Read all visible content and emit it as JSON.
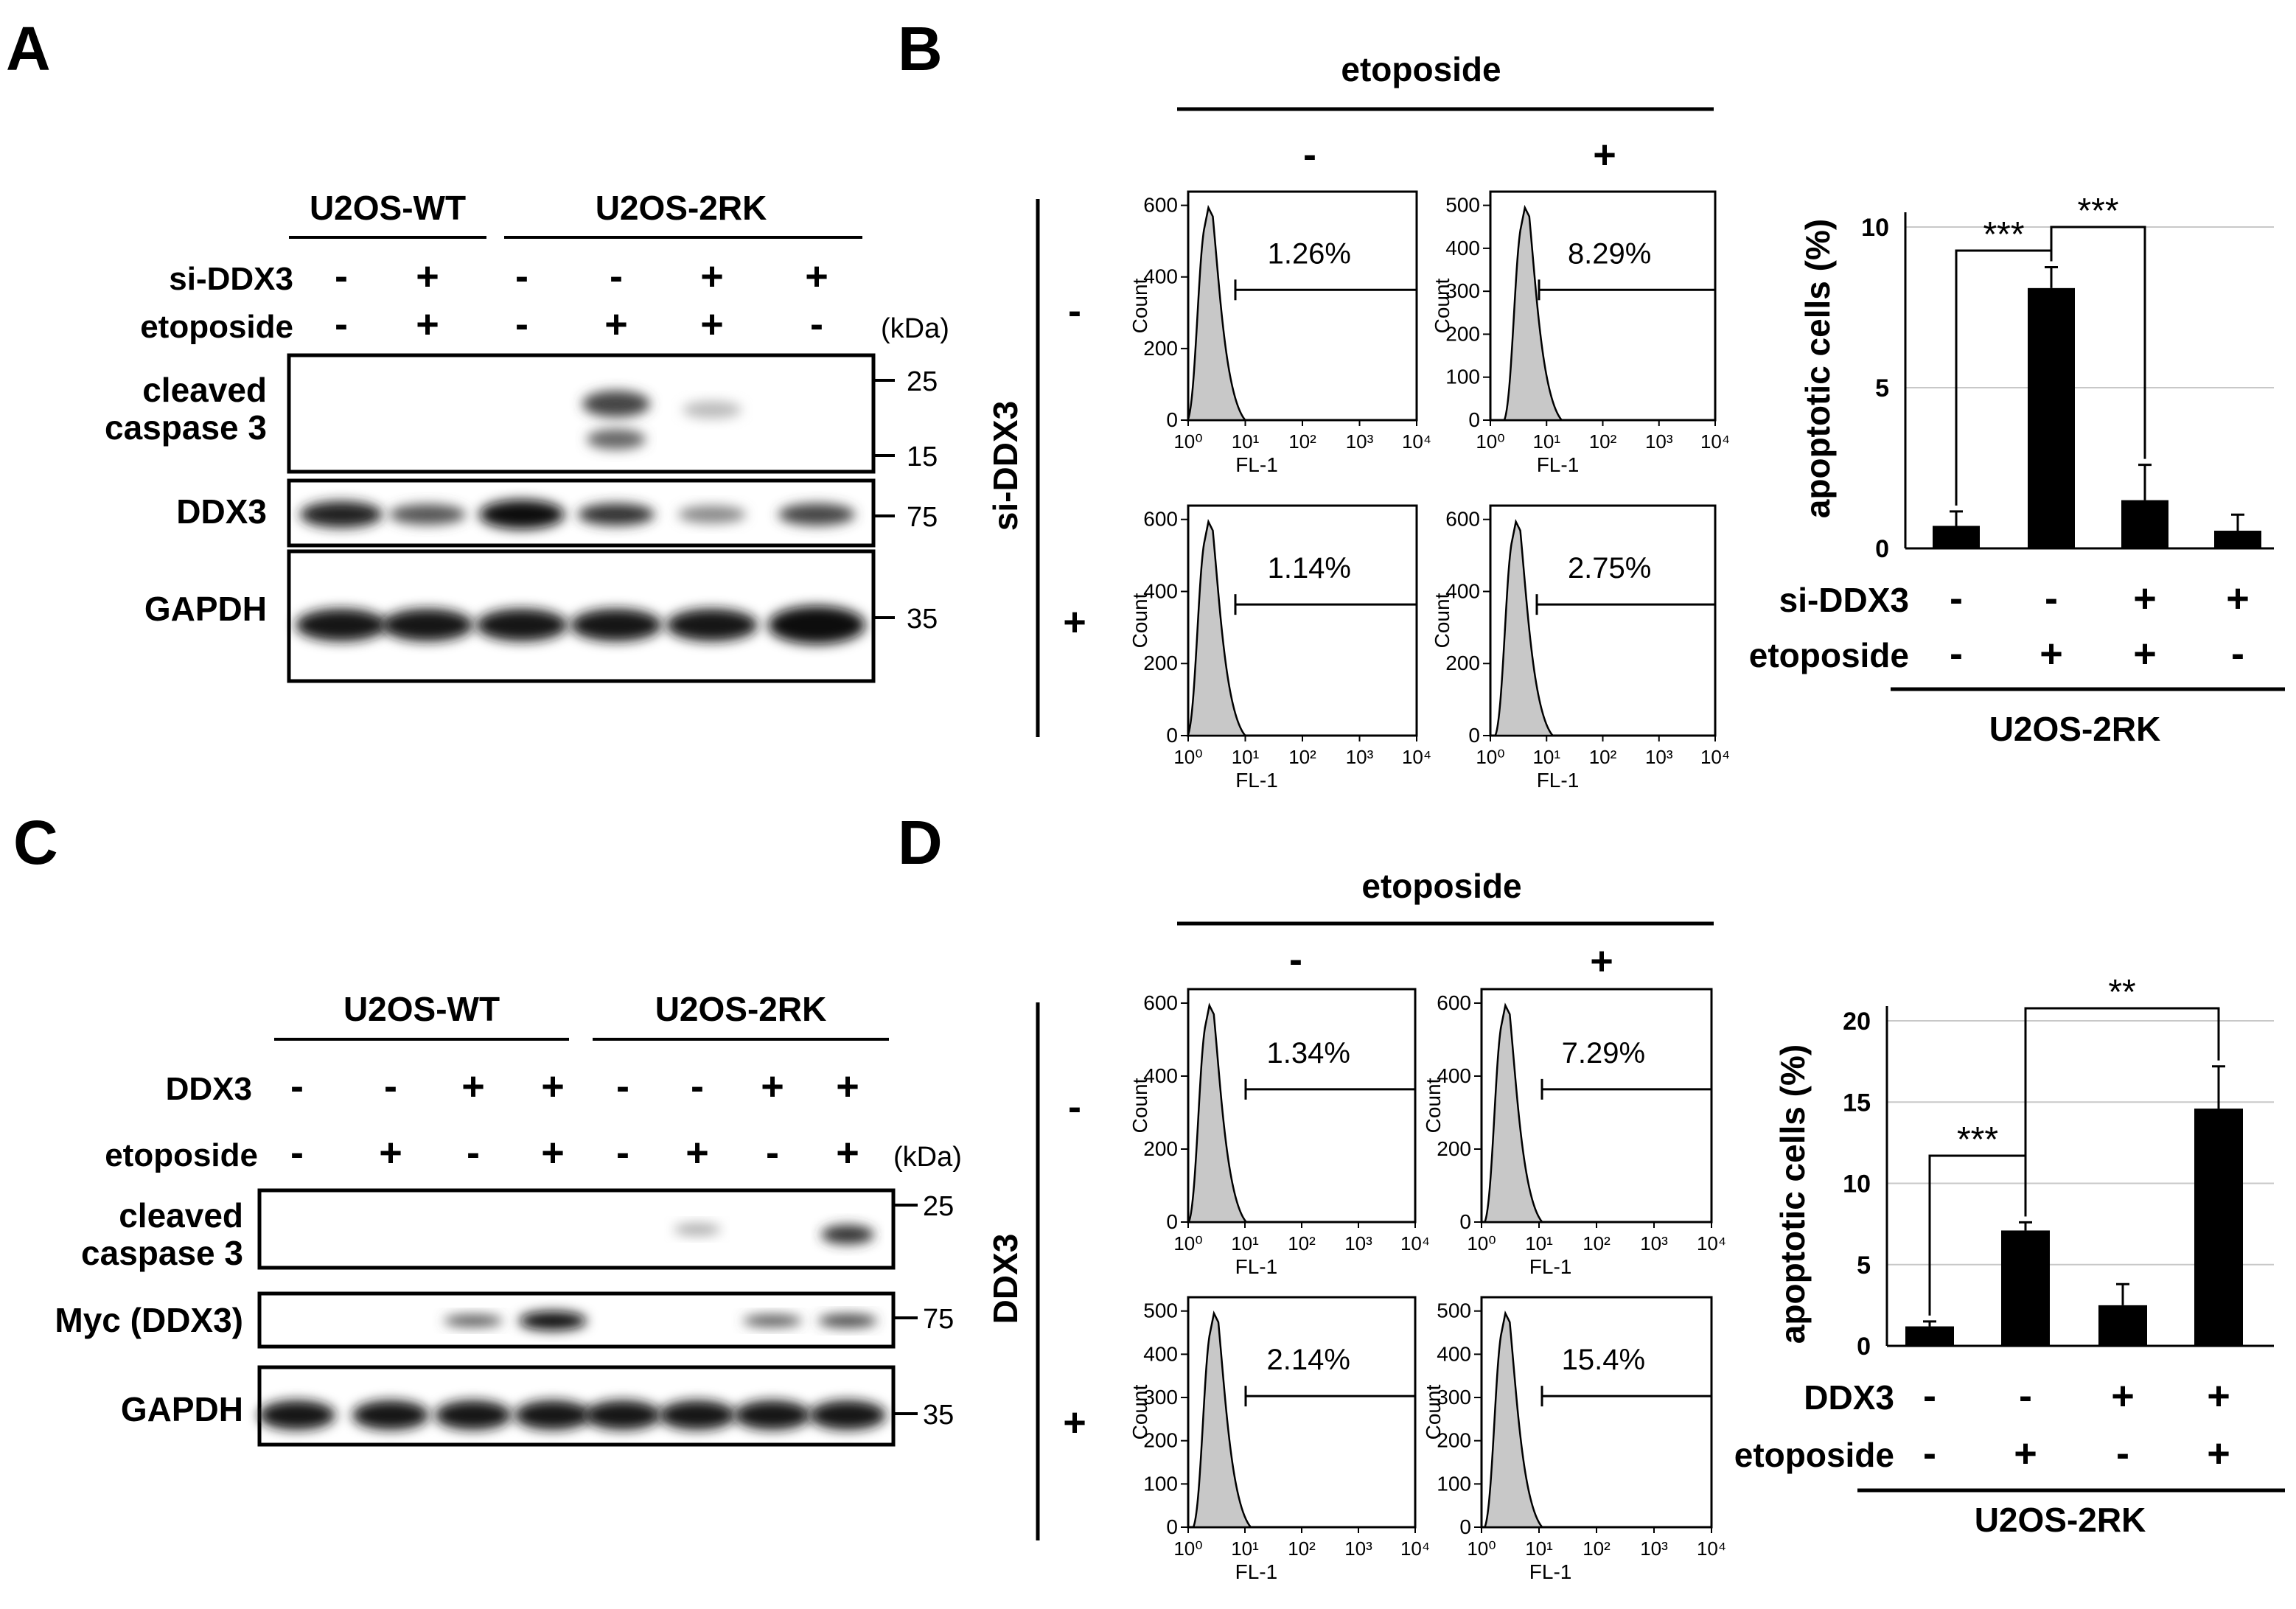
{
  "units": {
    "kda": "(kDa)",
    "count_label": "Count",
    "fl_label": "FL-1"
  },
  "log_ticks": [
    "10⁰",
    "10¹",
    "10²",
    "10³",
    "10⁴"
  ],
  "panelA": {
    "letter": "A",
    "groups": [
      "U2OS-WT",
      "U2OS-2RK"
    ],
    "rows": [
      {
        "label": "si-DDX3",
        "signs": [
          "-",
          "+",
          "-",
          "-",
          "+",
          "+"
        ]
      },
      {
        "label": "etoposide",
        "signs": [
          "-",
          "+",
          "-",
          "+",
          "+",
          "-"
        ]
      }
    ],
    "blots": [
      {
        "label_lines": [
          "cleaved",
          "caspase 3"
        ],
        "markers": [
          "25",
          "15"
        ]
      },
      {
        "label_lines": [
          "DDX3"
        ],
        "markers": [
          "75"
        ]
      },
      {
        "label_lines": [
          "GAPDH"
        ],
        "markers": [
          "35"
        ]
      }
    ]
  },
  "panelB": {
    "letter": "B",
    "header": "etoposide",
    "col_signs": [
      "-",
      "+"
    ],
    "side_label": "si-DDX3",
    "row_signs": [
      "-",
      "+"
    ],
    "histograms": [
      {
        "pct": "1.26%",
        "yticks": [
          "0",
          "200",
          "400",
          "600"
        ]
      },
      {
        "pct": "8.29%",
        "yticks": [
          "0",
          "100",
          "200",
          "300",
          "400",
          "500"
        ]
      },
      {
        "pct": "1.14%",
        "yticks": [
          "0",
          "200",
          "400",
          "600"
        ]
      },
      {
        "pct": "2.75%",
        "yticks": [
          "0",
          "200",
          "400",
          "600"
        ]
      }
    ]
  },
  "panelC": {
    "letter": "C",
    "groups": [
      "U2OS-WT",
      "U2OS-2RK"
    ],
    "rows": [
      {
        "label": "DDX3",
        "signs": [
          "-",
          "-",
          "+",
          "+",
          "-",
          "-",
          "+",
          "+"
        ]
      },
      {
        "label": "etoposide",
        "signs": [
          "-",
          "+",
          "-",
          "+",
          "-",
          "+",
          "-",
          "+"
        ]
      }
    ],
    "blots": [
      {
        "label_lines": [
          "cleaved",
          "caspase 3"
        ],
        "markers": [
          "25"
        ]
      },
      {
        "label_lines": [
          "Myc (DDX3)"
        ],
        "markers": [
          "75"
        ]
      },
      {
        "label_lines": [
          "GAPDH"
        ],
        "markers": [
          "35"
        ]
      }
    ]
  },
  "panelD": {
    "letter": "D",
    "header": "etoposide",
    "col_signs": [
      "-",
      "+"
    ],
    "side_label": "DDX3",
    "row_signs": [
      "-",
      "+"
    ],
    "histograms": [
      {
        "pct": "1.34%",
        "yticks": [
          "0",
          "200",
          "400",
          "600"
        ]
      },
      {
        "pct": "7.29%",
        "yticks": [
          "0",
          "200",
          "400",
          "600"
        ]
      },
      {
        "pct": "2.14%",
        "yticks": [
          "0",
          "100",
          "200",
          "300",
          "400",
          "500"
        ]
      },
      {
        "pct": "15.4%",
        "yticks": [
          "0",
          "100",
          "200",
          "300",
          "400",
          "500"
        ]
      }
    ]
  },
  "chart_data": [
    {
      "type": "bar",
      "panel": "B",
      "ylabel": "apoptotic cells (%)",
      "ylim": [
        0,
        10
      ],
      "yticks": [
        0,
        5,
        10
      ],
      "grid": true,
      "values": [
        0.7,
        8.1,
        1.5,
        0.55
      ],
      "errors": [
        0.45,
        0.65,
        1.1,
        0.5
      ],
      "conditions": [
        {
          "label": "si-DDX3",
          "signs": [
            "-",
            "-",
            "+",
            "+"
          ]
        },
        {
          "label": "etoposide",
          "signs": [
            "-",
            "+",
            "+",
            "-"
          ]
        }
      ],
      "group_label": "U2OS-2RK",
      "significance": [
        {
          "from": 0,
          "to": 1,
          "label": "***"
        },
        {
          "from": 1,
          "to": 2,
          "label": "***"
        }
      ]
    },
    {
      "type": "bar",
      "panel": "D",
      "ylabel": "apoptotic cells (%)",
      "ylim": [
        0,
        20
      ],
      "yticks": [
        0,
        5,
        10,
        15,
        20
      ],
      "grid": true,
      "values": [
        1.2,
        7.1,
        2.5,
        14.6
      ],
      "errors": [
        0.3,
        0.5,
        1.3,
        2.6
      ],
      "conditions": [
        {
          "label": "DDX3",
          "signs": [
            "-",
            "-",
            "+",
            "+"
          ]
        },
        {
          "label": "etoposide",
          "signs": [
            "-",
            "+",
            "-",
            "+"
          ]
        }
      ],
      "group_label": "U2OS-2RK",
      "significance": [
        {
          "from": 0,
          "to": 1,
          "label": "***"
        },
        {
          "from": 1,
          "to": 3,
          "label": "**"
        }
      ]
    }
  ]
}
